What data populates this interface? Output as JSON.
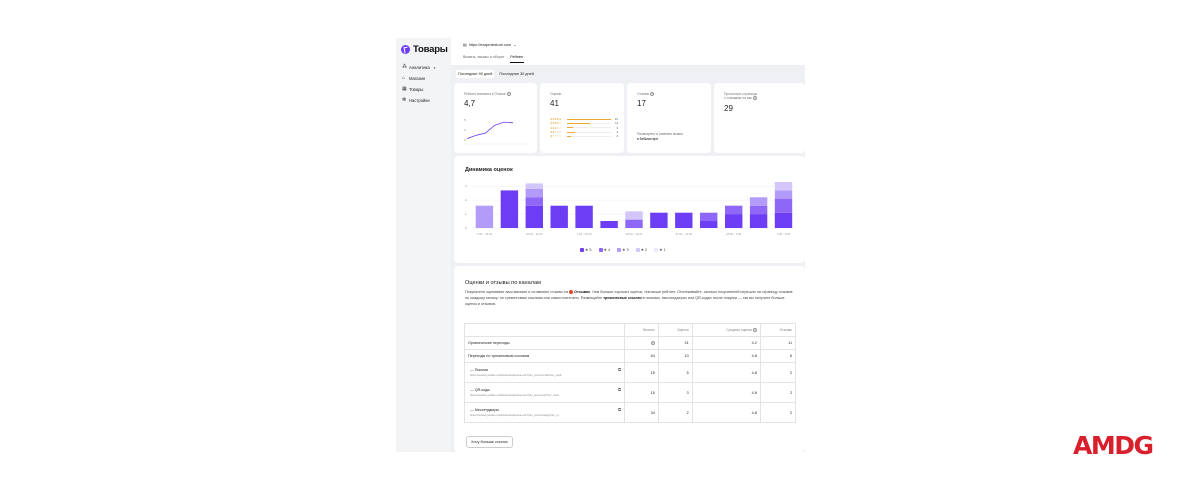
{
  "sidebar": {
    "brand": "Товары",
    "items": [
      {
        "label": "Аналитика",
        "icon": "analytics-icon"
      },
      {
        "label": "Магазин",
        "icon": "store-icon"
      },
      {
        "label": "Товары",
        "icon": "grid-icon"
      },
      {
        "label": "Настройки",
        "icon": "gear-icon"
      }
    ]
  },
  "header": {
    "store_url": "https://exapmlestore.com",
    "tabs": [
      {
        "label": "Визиты, заказы и оборот",
        "active": false
      },
      {
        "label": "Рейтинг",
        "active": true
      }
    ]
  },
  "periods": [
    {
      "label": "Последние 90 дней",
      "active": true
    },
    {
      "label": "Последние 30 дней",
      "active": false
    }
  ],
  "cards": {
    "rating": {
      "label": "Рейтинг магазина в Поиске",
      "value": "4,7",
      "y_ticks": [
        "5",
        "4",
        "3"
      ],
      "trend": [
        0.2,
        0.35,
        0.45,
        0.8,
        0.95,
        0.92
      ]
    },
    "ratings_count": {
      "label": "Оценки",
      "value": "41",
      "distribution": [
        {
          "stars": 5,
          "count": "21",
          "fraction": 1.0
        },
        {
          "stars": 4,
          "count": "11",
          "fraction": 0.52
        },
        {
          "stars": 3,
          "count": "3",
          "fraction": 0.14
        },
        {
          "stars": 2,
          "count": "4",
          "fraction": 0.19
        },
        {
          "stars": 1,
          "count": "2",
          "fraction": 0.1
        }
      ]
    },
    "reviews": {
      "label": "Отзывы",
      "value": "17",
      "note_line1": "Посмотреть и ответить можно",
      "note_line2": "в Вебмастере"
    },
    "views": {
      "label_line1": "Просмотры страницы",
      "label_line2": "с отзывами на вас",
      "value": "29"
    }
  },
  "dynamics": {
    "title": "Динамика оценок",
    "legend": [
      {
        "label": "5",
        "color": "#6d3df5",
        "checked": true
      },
      {
        "label": "4",
        "color": "#8f67f7",
        "checked": true
      },
      {
        "label": "3",
        "color": "#b39bf9",
        "checked": true
      },
      {
        "label": "2",
        "color": "#d2c6fb",
        "checked": true
      },
      {
        "label": "1",
        "color": "#ebe5fd",
        "checked": true
      }
    ]
  },
  "chart_data": {
    "type": "bar",
    "stacked": true,
    "y_ticks": [
      "3",
      "2",
      "1",
      "0"
    ],
    "x_tick_labels": [
      "2.02 – 15.02",
      "16.02 – 22.02",
      "1.03 – 15.03",
      "29.03 – 12.04",
      "27.04 – 10.05",
      "25.05 – 2.06",
      "7.06 – 8.06"
    ],
    "ylim": [
      0,
      3.3
    ],
    "series": [
      {
        "name": "5",
        "values": [
          0,
          2.7,
          1.6,
          1.6,
          1.6,
          0.5,
          0,
          1.1,
          1.1,
          0.5,
          1.0,
          1.0,
          1.1
        ]
      },
      {
        "name": "4",
        "values": [
          0,
          0,
          0.6,
          0,
          0,
          0,
          0.6,
          0,
          0,
          0.6,
          0.6,
          0.6,
          1.0
        ]
      },
      {
        "name": "3",
        "values": [
          1.6,
          0,
          0.6,
          0,
          0,
          0,
          0,
          0,
          0,
          0,
          0,
          0.6,
          0.6
        ]
      },
      {
        "name": "2",
        "values": [
          0,
          0,
          0.4,
          0,
          0,
          0,
          0.6,
          0,
          0,
          0,
          0,
          0,
          0.6
        ]
      },
      {
        "name": "1",
        "values": [
          0,
          0,
          0,
          0,
          0,
          0,
          0,
          0,
          0,
          0,
          0,
          0,
          0
        ]
      }
    ],
    "colors": [
      "#6d3df5",
      "#8f67f7",
      "#b39bf9",
      "#d2c6fb",
      "#ebe5fd"
    ]
  },
  "channels": {
    "title": "Оценки и отзывы по каналам",
    "desc_1": "Покупатели оценивают ваш магазин и оставляют отзывы на ",
    "desc_brand": "Отзывах",
    "desc_2": ". Чем больше хороших оценок, тем выше рейтинг. Отслеживайте, сколько покупателей перешли на страницу отзывов по каждому каналу: по трекинговым ссылкам или самостоятельно. Размещайте ",
    "desc_link": "трекинговые ссылки",
    "desc_3": " в письмах, мессенджерах или QR-кодах после покупки — так вы получите больше оценок и отзывов.",
    "columns": [
      "Визиты",
      "Оценки",
      "Средняя оценка",
      "Отзывы"
    ],
    "rows": [
      {
        "name": "Органические переходы",
        "visits": "",
        "ratings": "31",
        "avg": "4.2",
        "reviews": "11"
      },
      {
        "name": "Переходы по трекинговым ссылкам",
        "visits": "64",
        "ratings": "10",
        "avg": "4.8",
        "reviews": "6"
      }
    ],
    "subrows": [
      {
        "name": "Письма",
        "url": "https://reviews.yandex.ru/shop/examplestore.com?utm_source=mail?utm_medi...",
        "visits": "15",
        "ratings": "5",
        "avg": "4.8",
        "reviews": "2"
      },
      {
        "name": "QR-коды",
        "url": "https://reviews.yandex.ru/shop/examplestore.com?utm_source=qr?utm_medi...",
        "visits": "15",
        "ratings": "3",
        "avg": "4.8",
        "reviews": "2"
      },
      {
        "name": "Мессенджеры",
        "url": "https://reviews.yandex.ru/shop/examplestore.com?utm_source=teleg?utm_m...",
        "visits": "34",
        "ratings": "2",
        "avg": "4.8",
        "reviews": "2"
      }
    ],
    "more_button": "Хочу больше ссылок"
  },
  "brand_logo": "AMDG"
}
